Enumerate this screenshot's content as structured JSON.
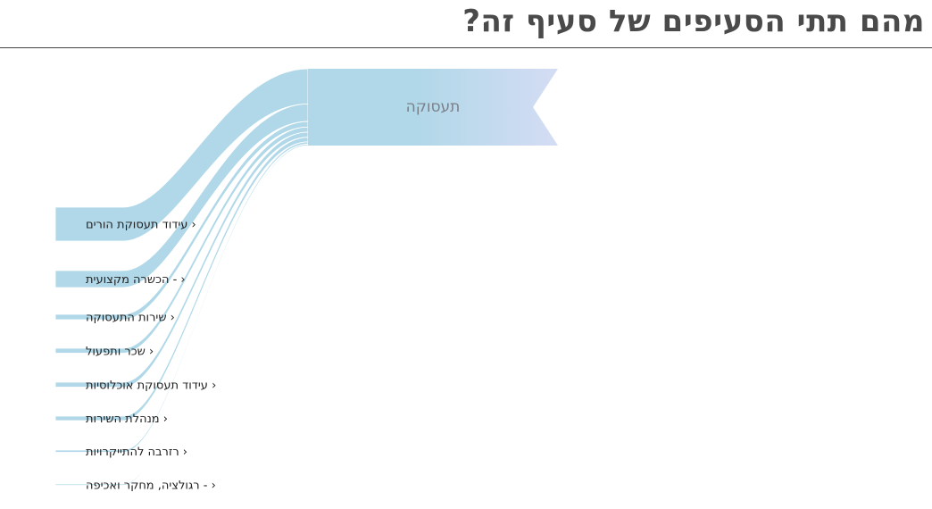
{
  "page": {
    "title": "מהם תתי הסעיפים של סעיף זה?"
  },
  "chart_data": {
    "type": "sankey",
    "root": {
      "label": "תעסוקה"
    },
    "items": [
      {
        "label": "עידוד תעסוקת הורים",
        "marker": "‹",
        "value": 38
      },
      {
        "label": "- הכשרה מקצועית",
        "marker": "‹",
        "value": 19
      },
      {
        "label": "שירות התעסוקה",
        "marker": "‹",
        "value": 6
      },
      {
        "label": "שכר ותפעול",
        "marker": "‹",
        "value": 5.5
      },
      {
        "label": "עידוד תעסוקת אוכלוסיות",
        "marker": "‹",
        "value": 5.5
      },
      {
        "label": "מנהלת השירות",
        "marker": "‹",
        "value": 5
      },
      {
        "label": "רזרבה להתייקרויות",
        "marker": "‹",
        "value": 2.5
      },
      {
        "label": "- רגולציה, מחקר ואכיפה",
        "marker": "‹",
        "value": 1.5
      }
    ],
    "colors": {
      "flow": "#b0d8e8",
      "root_start": "#b0d8e8",
      "root_end": "#d4dcf4"
    }
  }
}
